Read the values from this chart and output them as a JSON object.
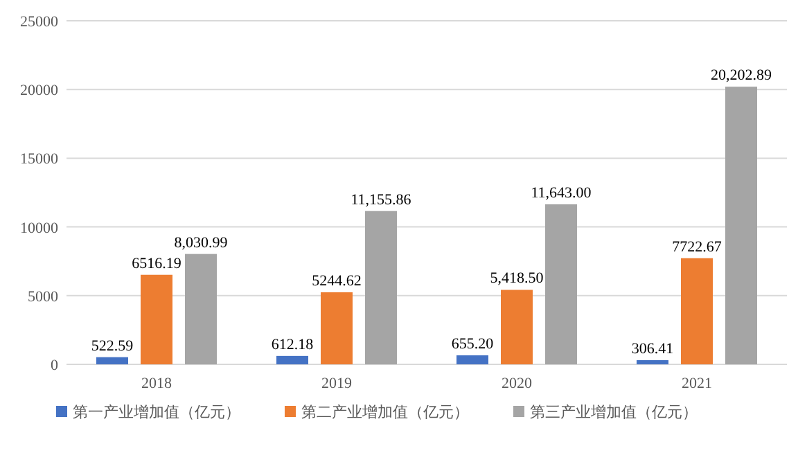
{
  "chart_data": {
    "type": "bar",
    "categories": [
      "2018",
      "2019",
      "2020",
      "2021"
    ],
    "series": [
      {
        "name": "第一产业增加值（亿元）",
        "color": "#4472c4",
        "values": [
          522.59,
          612.18,
          655.2,
          306.41
        ],
        "value_labels": [
          "522.59",
          "612.18",
          "655.20",
          "306.41"
        ]
      },
      {
        "name": "第二产业增加值（亿元）",
        "color": "#ed7d31",
        "values": [
          6516.19,
          5244.62,
          5418.5,
          7722.67
        ],
        "value_labels": [
          "6516.19",
          "5244.62",
          "5,418.50",
          "7722.67"
        ]
      },
      {
        "name": "第三产业增加值（亿元）",
        "color": "#a5a5a5",
        "values": [
          8030.99,
          11155.86,
          11643.0,
          20202.89
        ],
        "value_labels": [
          "8,030.99",
          "11,155.86",
          "11,643.00",
          "20,202.89"
        ]
      }
    ],
    "ylim": [
      0,
      25000
    ],
    "yticks": [
      0,
      5000,
      10000,
      15000,
      20000,
      25000
    ],
    "grid": "y",
    "legend": "bottom"
  }
}
